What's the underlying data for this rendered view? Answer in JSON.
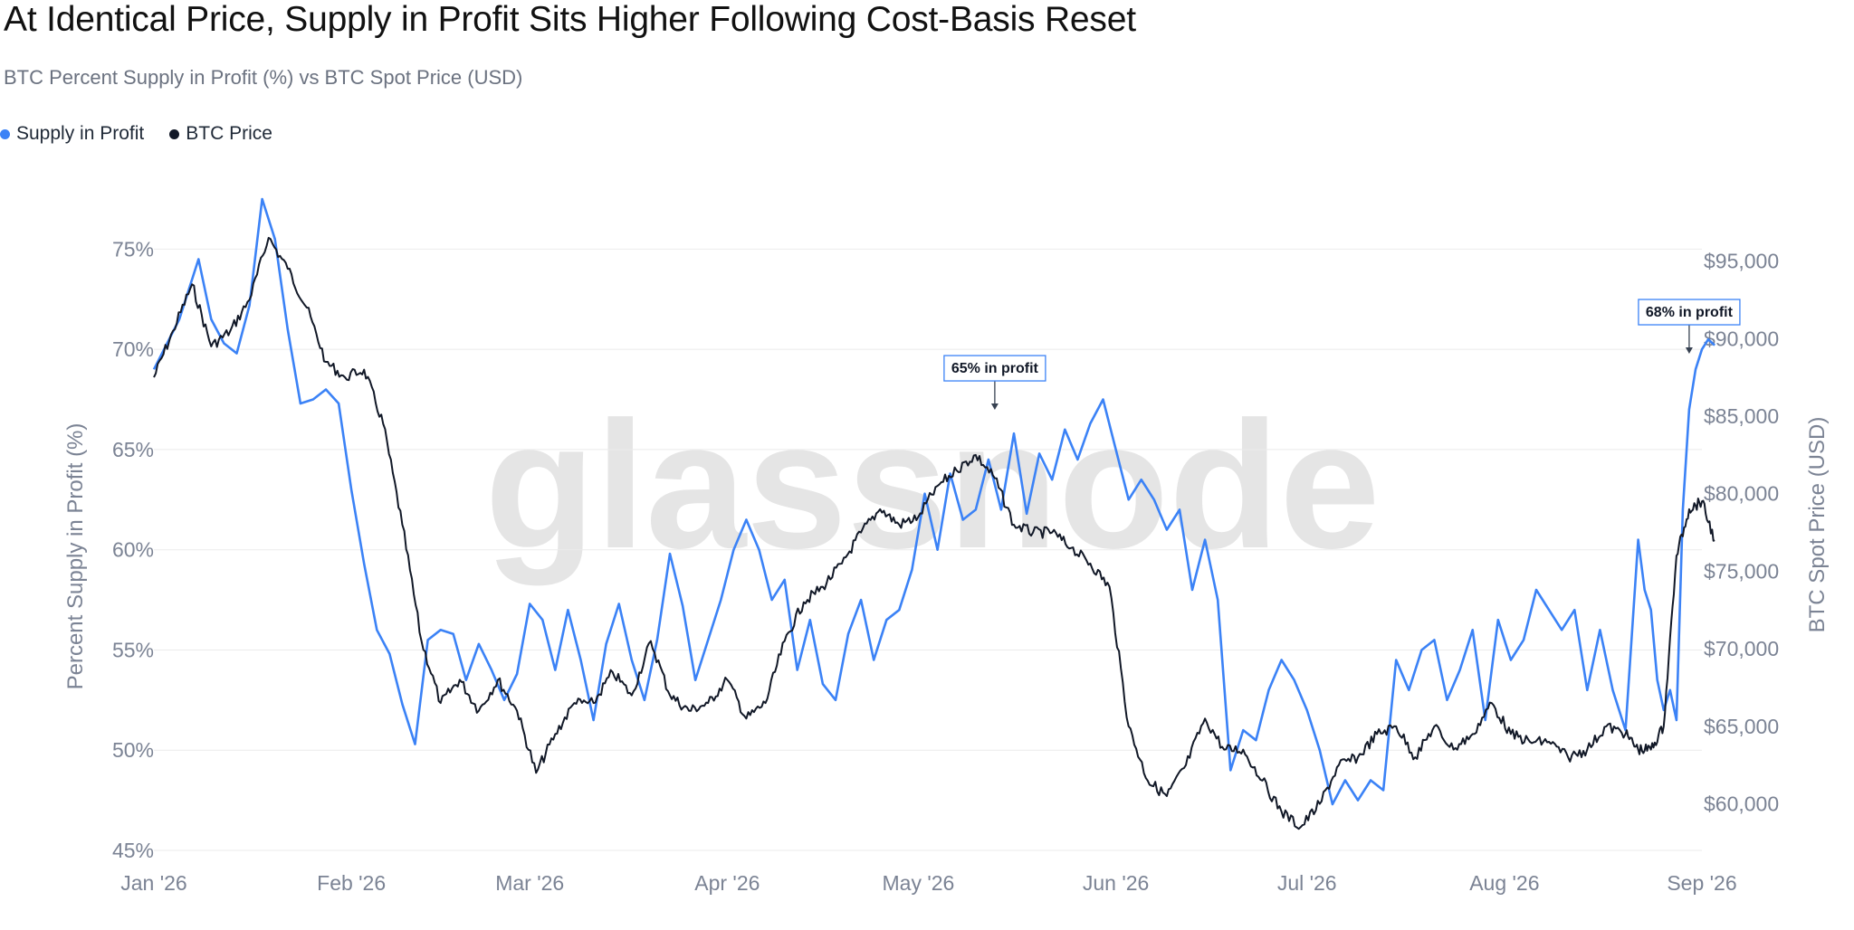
{
  "title": "At Identical Price, Supply in Profit Sits Higher Following Cost-Basis Reset",
  "subtitle": "BTC Percent Supply in Profit (%) vs BTC Spot Price (USD)",
  "watermark": "glassnode",
  "legend": [
    {
      "label": "Supply in Profit",
      "color": "#3b82f6"
    },
    {
      "label": "BTC Price",
      "color": "#111827"
    }
  ],
  "chart_data": {
    "type": "line",
    "x_tick_labels": [
      "Jan '26",
      "Feb '26",
      "Mar '26",
      "Apr '26",
      "May '26",
      "Jun '26",
      "Jul '26",
      "Aug '26",
      "Sep '26"
    ],
    "y_left": {
      "label": "Percent Supply in Profit (%)",
      "range": [
        45,
        77.5
      ],
      "ticks": [
        45,
        50,
        55,
        60,
        65,
        70,
        75
      ],
      "tick_labels": [
        "45%",
        "50%",
        "55%",
        "60%",
        "65%",
        "70%",
        "75%"
      ]
    },
    "y_right": {
      "label": "BTC Spot Price (USD)",
      "range": [
        57000,
        99000
      ],
      "ticks": [
        60000,
        65000,
        70000,
        75000,
        80000,
        85000,
        90000,
        95000
      ],
      "tick_labels": [
        "$60,000",
        "$65,000",
        "$70,000",
        "$75,000",
        "$80,000",
        "$85,000",
        "$90,000",
        "$95,000"
      ]
    },
    "grid": true,
    "legend_position": "top-left",
    "series": [
      {
        "name": "Supply in Profit",
        "axis": "left",
        "color": "#3b82f6",
        "x": [
          "2026-01-01",
          "2026-01-05",
          "2026-01-08",
          "2026-01-10",
          "2026-01-12",
          "2026-01-14",
          "2026-01-16",
          "2026-01-18",
          "2026-01-20",
          "2026-01-22",
          "2026-01-24",
          "2026-01-26",
          "2026-01-28",
          "2026-01-30",
          "2026-02-01",
          "2026-02-03",
          "2026-02-05",
          "2026-02-07",
          "2026-02-09",
          "2026-02-11",
          "2026-02-13",
          "2026-02-15",
          "2026-02-17",
          "2026-02-19",
          "2026-02-21",
          "2026-02-23",
          "2026-02-25",
          "2026-02-27",
          "2026-03-01",
          "2026-03-03",
          "2026-03-05",
          "2026-03-07",
          "2026-03-09",
          "2026-03-11",
          "2026-03-13",
          "2026-03-15",
          "2026-03-17",
          "2026-03-19",
          "2026-03-21",
          "2026-03-23",
          "2026-03-25",
          "2026-03-27",
          "2026-03-29",
          "2026-03-31",
          "2026-04-02",
          "2026-04-04",
          "2026-04-06",
          "2026-04-08",
          "2026-04-10",
          "2026-04-12",
          "2026-04-14",
          "2026-04-16",
          "2026-04-18",
          "2026-04-20",
          "2026-04-22",
          "2026-04-24",
          "2026-04-26",
          "2026-04-28",
          "2026-04-30",
          "2026-05-02",
          "2026-05-04",
          "2026-05-06",
          "2026-05-08",
          "2026-05-10",
          "2026-05-12",
          "2026-05-14",
          "2026-05-16",
          "2026-05-18",
          "2026-05-20",
          "2026-05-22",
          "2026-05-24",
          "2026-05-26",
          "2026-05-28",
          "2026-05-30",
          "2026-06-01",
          "2026-06-03",
          "2026-06-05",
          "2026-06-07",
          "2026-06-09",
          "2026-06-11",
          "2026-06-13",
          "2026-06-15",
          "2026-06-17",
          "2026-06-19",
          "2026-06-21",
          "2026-06-23",
          "2026-06-25",
          "2026-06-27",
          "2026-06-29",
          "2026-07-01",
          "2026-07-03",
          "2026-07-05",
          "2026-07-07",
          "2026-07-09",
          "2026-07-11",
          "2026-07-13",
          "2026-07-15",
          "2026-07-17",
          "2026-07-19",
          "2026-07-21",
          "2026-07-23",
          "2026-07-25",
          "2026-07-27",
          "2026-07-29",
          "2026-07-31",
          "2026-08-02",
          "2026-08-04",
          "2026-08-06",
          "2026-08-08",
          "2026-08-10",
          "2026-08-12",
          "2026-08-14",
          "2026-08-16",
          "2026-08-18",
          "2026-08-20",
          "2026-08-22",
          "2026-08-23",
          "2026-08-24",
          "2026-08-25",
          "2026-08-26",
          "2026-08-27",
          "2026-08-28",
          "2026-08-29",
          "2026-08-30",
          "2026-08-31",
          "2026-09-01",
          "2026-09-02",
          "2026-09-03"
        ],
        "values": [
          69.0,
          71.5,
          74.5,
          71.5,
          70.3,
          69.8,
          72.2,
          77.5,
          75.5,
          71.0,
          67.3,
          67.5,
          68.0,
          67.3,
          63.0,
          59.3,
          56.0,
          54.8,
          52.3,
          50.3,
          55.5,
          56.0,
          55.8,
          53.5,
          55.3,
          54.0,
          52.5,
          53.8,
          57.3,
          56.5,
          54.0,
          57.0,
          54.5,
          51.5,
          55.3,
          57.3,
          54.5,
          52.5,
          55.5,
          59.8,
          57.2,
          53.5,
          55.5,
          57.5,
          60.0,
          61.5,
          60.0,
          57.5,
          58.5,
          54.0,
          56.5,
          53.3,
          52.5,
          55.8,
          57.5,
          54.5,
          56.5,
          57.0,
          59.0,
          62.8,
          60.0,
          63.8,
          61.5,
          62.0,
          64.5,
          62.0,
          65.8,
          61.8,
          64.8,
          63.5,
          66.0,
          64.5,
          66.3,
          67.5,
          65.0,
          62.5,
          63.5,
          62.5,
          61.0,
          62.0,
          58.0,
          60.5,
          57.5,
          49.0,
          51.0,
          50.5,
          53.0,
          54.5,
          53.5,
          52.0,
          50.0,
          47.3,
          48.5,
          47.5,
          48.5,
          48.0,
          54.5,
          53.0,
          55.0,
          55.5,
          52.5,
          54.0,
          56.0,
          51.5,
          56.5,
          54.5,
          55.5,
          58.0,
          57.0,
          56.0,
          57.0,
          53.0,
          56.0,
          53.0,
          51.0,
          60.5,
          58.0,
          57.0,
          53.5,
          52.0,
          53.0,
          51.5,
          62.0,
          67.0,
          69.0,
          70.0,
          70.5,
          70.2
        ]
      },
      {
        "name": "BTC Price",
        "axis": "right",
        "color": "#111827",
        "x": [
          "2026-01-01",
          "2026-01-04",
          "2026-01-07",
          "2026-01-10",
          "2026-01-13",
          "2026-01-16",
          "2026-01-19",
          "2026-01-22",
          "2026-01-25",
          "2026-01-28",
          "2026-01-31",
          "2026-02-03",
          "2026-02-06",
          "2026-02-09",
          "2026-02-12",
          "2026-02-15",
          "2026-02-18",
          "2026-02-21",
          "2026-02-24",
          "2026-02-27",
          "2026-03-02",
          "2026-03-05",
          "2026-03-08",
          "2026-03-11",
          "2026-03-14",
          "2026-03-17",
          "2026-03-20",
          "2026-03-23",
          "2026-03-26",
          "2026-03-29",
          "2026-04-01",
          "2026-04-04",
          "2026-04-07",
          "2026-04-10",
          "2026-04-13",
          "2026-04-16",
          "2026-04-19",
          "2026-04-22",
          "2026-04-25",
          "2026-04-28",
          "2026-05-01",
          "2026-05-04",
          "2026-05-07",
          "2026-05-10",
          "2026-05-13",
          "2026-05-16",
          "2026-05-19",
          "2026-05-22",
          "2026-05-25",
          "2026-05-28",
          "2026-05-31",
          "2026-06-03",
          "2026-06-06",
          "2026-06-09",
          "2026-06-12",
          "2026-06-15",
          "2026-06-18",
          "2026-06-21",
          "2026-06-24",
          "2026-06-27",
          "2026-06-30",
          "2026-07-03",
          "2026-07-06",
          "2026-07-09",
          "2026-07-12",
          "2026-07-15",
          "2026-07-18",
          "2026-07-21",
          "2026-07-24",
          "2026-07-27",
          "2026-07-30",
          "2026-08-02",
          "2026-08-05",
          "2026-08-08",
          "2026-08-11",
          "2026-08-14",
          "2026-08-17",
          "2026-08-20",
          "2026-08-22",
          "2026-08-24",
          "2026-08-26",
          "2026-08-28",
          "2026-08-30",
          "2026-09-01",
          "2026-09-03"
        ],
        "values": [
          87500,
          90500,
          93500,
          89500,
          90500,
          92500,
          96500,
          94500,
          92000,
          88500,
          87500,
          88000,
          84500,
          78000,
          70500,
          66500,
          68000,
          66000,
          68000,
          66000,
          62000,
          64500,
          66500,
          66500,
          68500,
          67000,
          70500,
          67000,
          66000,
          66500,
          68000,
          65500,
          66500,
          70500,
          73000,
          74000,
          75500,
          77500,
          79000,
          78000,
          78500,
          80500,
          81500,
          82500,
          81000,
          78000,
          77500,
          77500,
          76500,
          75500,
          74000,
          65000,
          61500,
          60500,
          62500,
          65500,
          63500,
          63500,
          61500,
          59500,
          58500,
          60000,
          62500,
          63000,
          64500,
          65000,
          63000,
          65000,
          63500,
          64500,
          66500,
          64500,
          64000,
          64000,
          63000,
          63500,
          65000,
          64500,
          63500,
          63500,
          65000,
          76000,
          79000,
          79500,
          77000
        ]
      }
    ],
    "annotations": [
      {
        "text": "65% in profit",
        "series": "Supply in Profit",
        "x": "2026-05-13",
        "y": 66.8
      },
      {
        "text": "68% in profit",
        "series": "Supply in Profit",
        "x": "2026-08-30",
        "y": 69.6
      }
    ]
  }
}
